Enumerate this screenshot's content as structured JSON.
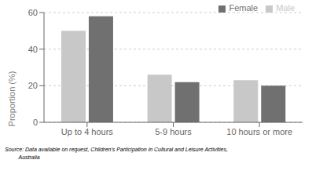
{
  "chart_data": {
    "type": "bar",
    "categories": [
      "Up to 4 hours",
      "5-9 hours",
      "10 hours or more"
    ],
    "series": [
      {
        "name": "Male",
        "color": "#c8c8c8",
        "values": [
          50,
          26,
          23
        ]
      },
      {
        "name": "Female",
        "color": "#707070",
        "values": [
          58,
          22,
          20
        ]
      }
    ],
    "ylabel": "Proportion (%)",
    "ylim": [
      0,
      60
    ],
    "yticks": [
      0,
      20,
      40,
      60
    ],
    "grid": true,
    "legend": "upper right",
    "annotations": [
      "Source: Data available on request, Children's Participation in Cultural and Leisure Activities,",
      "         Australia"
    ]
  }
}
